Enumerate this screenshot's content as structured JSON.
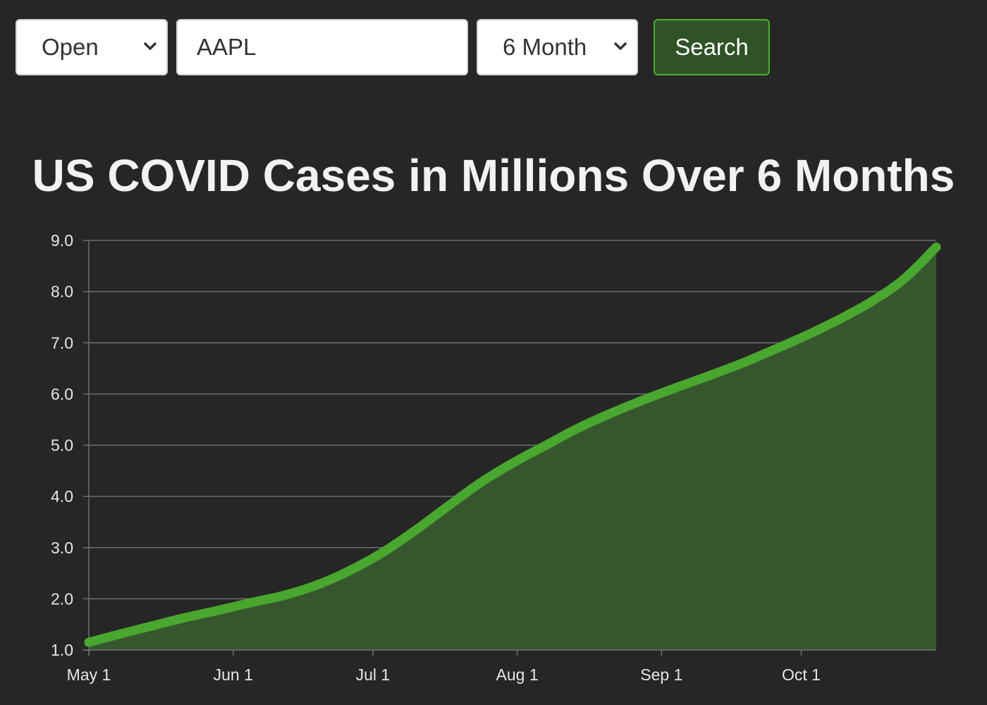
{
  "toolbar": {
    "field_select": {
      "selected": "Open"
    },
    "ticker_input": {
      "value": "AAPL"
    },
    "range_select": {
      "selected": "6 Month"
    },
    "search_label": "Search"
  },
  "colors": {
    "background": "#262626",
    "line": "#49a62e",
    "fill": "#375a2d",
    "grid": "#6e6e6e",
    "button_bg": "#2f5227",
    "button_border": "#4fae2e"
  },
  "chart_data": {
    "type": "area",
    "title": "US COVID Cases in Millions Over 6 Months",
    "xlabel": "",
    "ylabel": "",
    "ylim": [
      1.0,
      9.0
    ],
    "yticks": [
      "1.0",
      "2.0",
      "3.0",
      "4.0",
      "5.0",
      "6.0",
      "7.0",
      "8.0",
      "9.0"
    ],
    "xticks": [
      "May 1",
      "Jun 1",
      "Jul 1",
      "Aug 1",
      "Sep 1",
      "Oct 1"
    ],
    "grid": true,
    "legend": "none",
    "series": [
      {
        "x": [
          "2020-05-01",
          "2020-05-08",
          "2020-05-15",
          "2020-05-22",
          "2020-05-29",
          "2020-06-05",
          "2020-06-12",
          "2020-06-19",
          "2020-06-26",
          "2020-07-03",
          "2020-07-10",
          "2020-07-17",
          "2020-07-24",
          "2020-07-31",
          "2020-08-07",
          "2020-08-14",
          "2020-08-21",
          "2020-08-28",
          "2020-09-04",
          "2020-09-11",
          "2020-09-18",
          "2020-09-25",
          "2020-10-02",
          "2020-10-09",
          "2020-10-16",
          "2020-10-23",
          "2020-10-30"
        ],
        "values": [
          1.15,
          1.32,
          1.48,
          1.64,
          1.78,
          1.93,
          2.07,
          2.27,
          2.55,
          2.9,
          3.33,
          3.8,
          4.26,
          4.65,
          4.99,
          5.33,
          5.62,
          5.88,
          6.12,
          6.35,
          6.59,
          6.86,
          7.14,
          7.45,
          7.8,
          8.24,
          8.87
        ]
      }
    ]
  }
}
